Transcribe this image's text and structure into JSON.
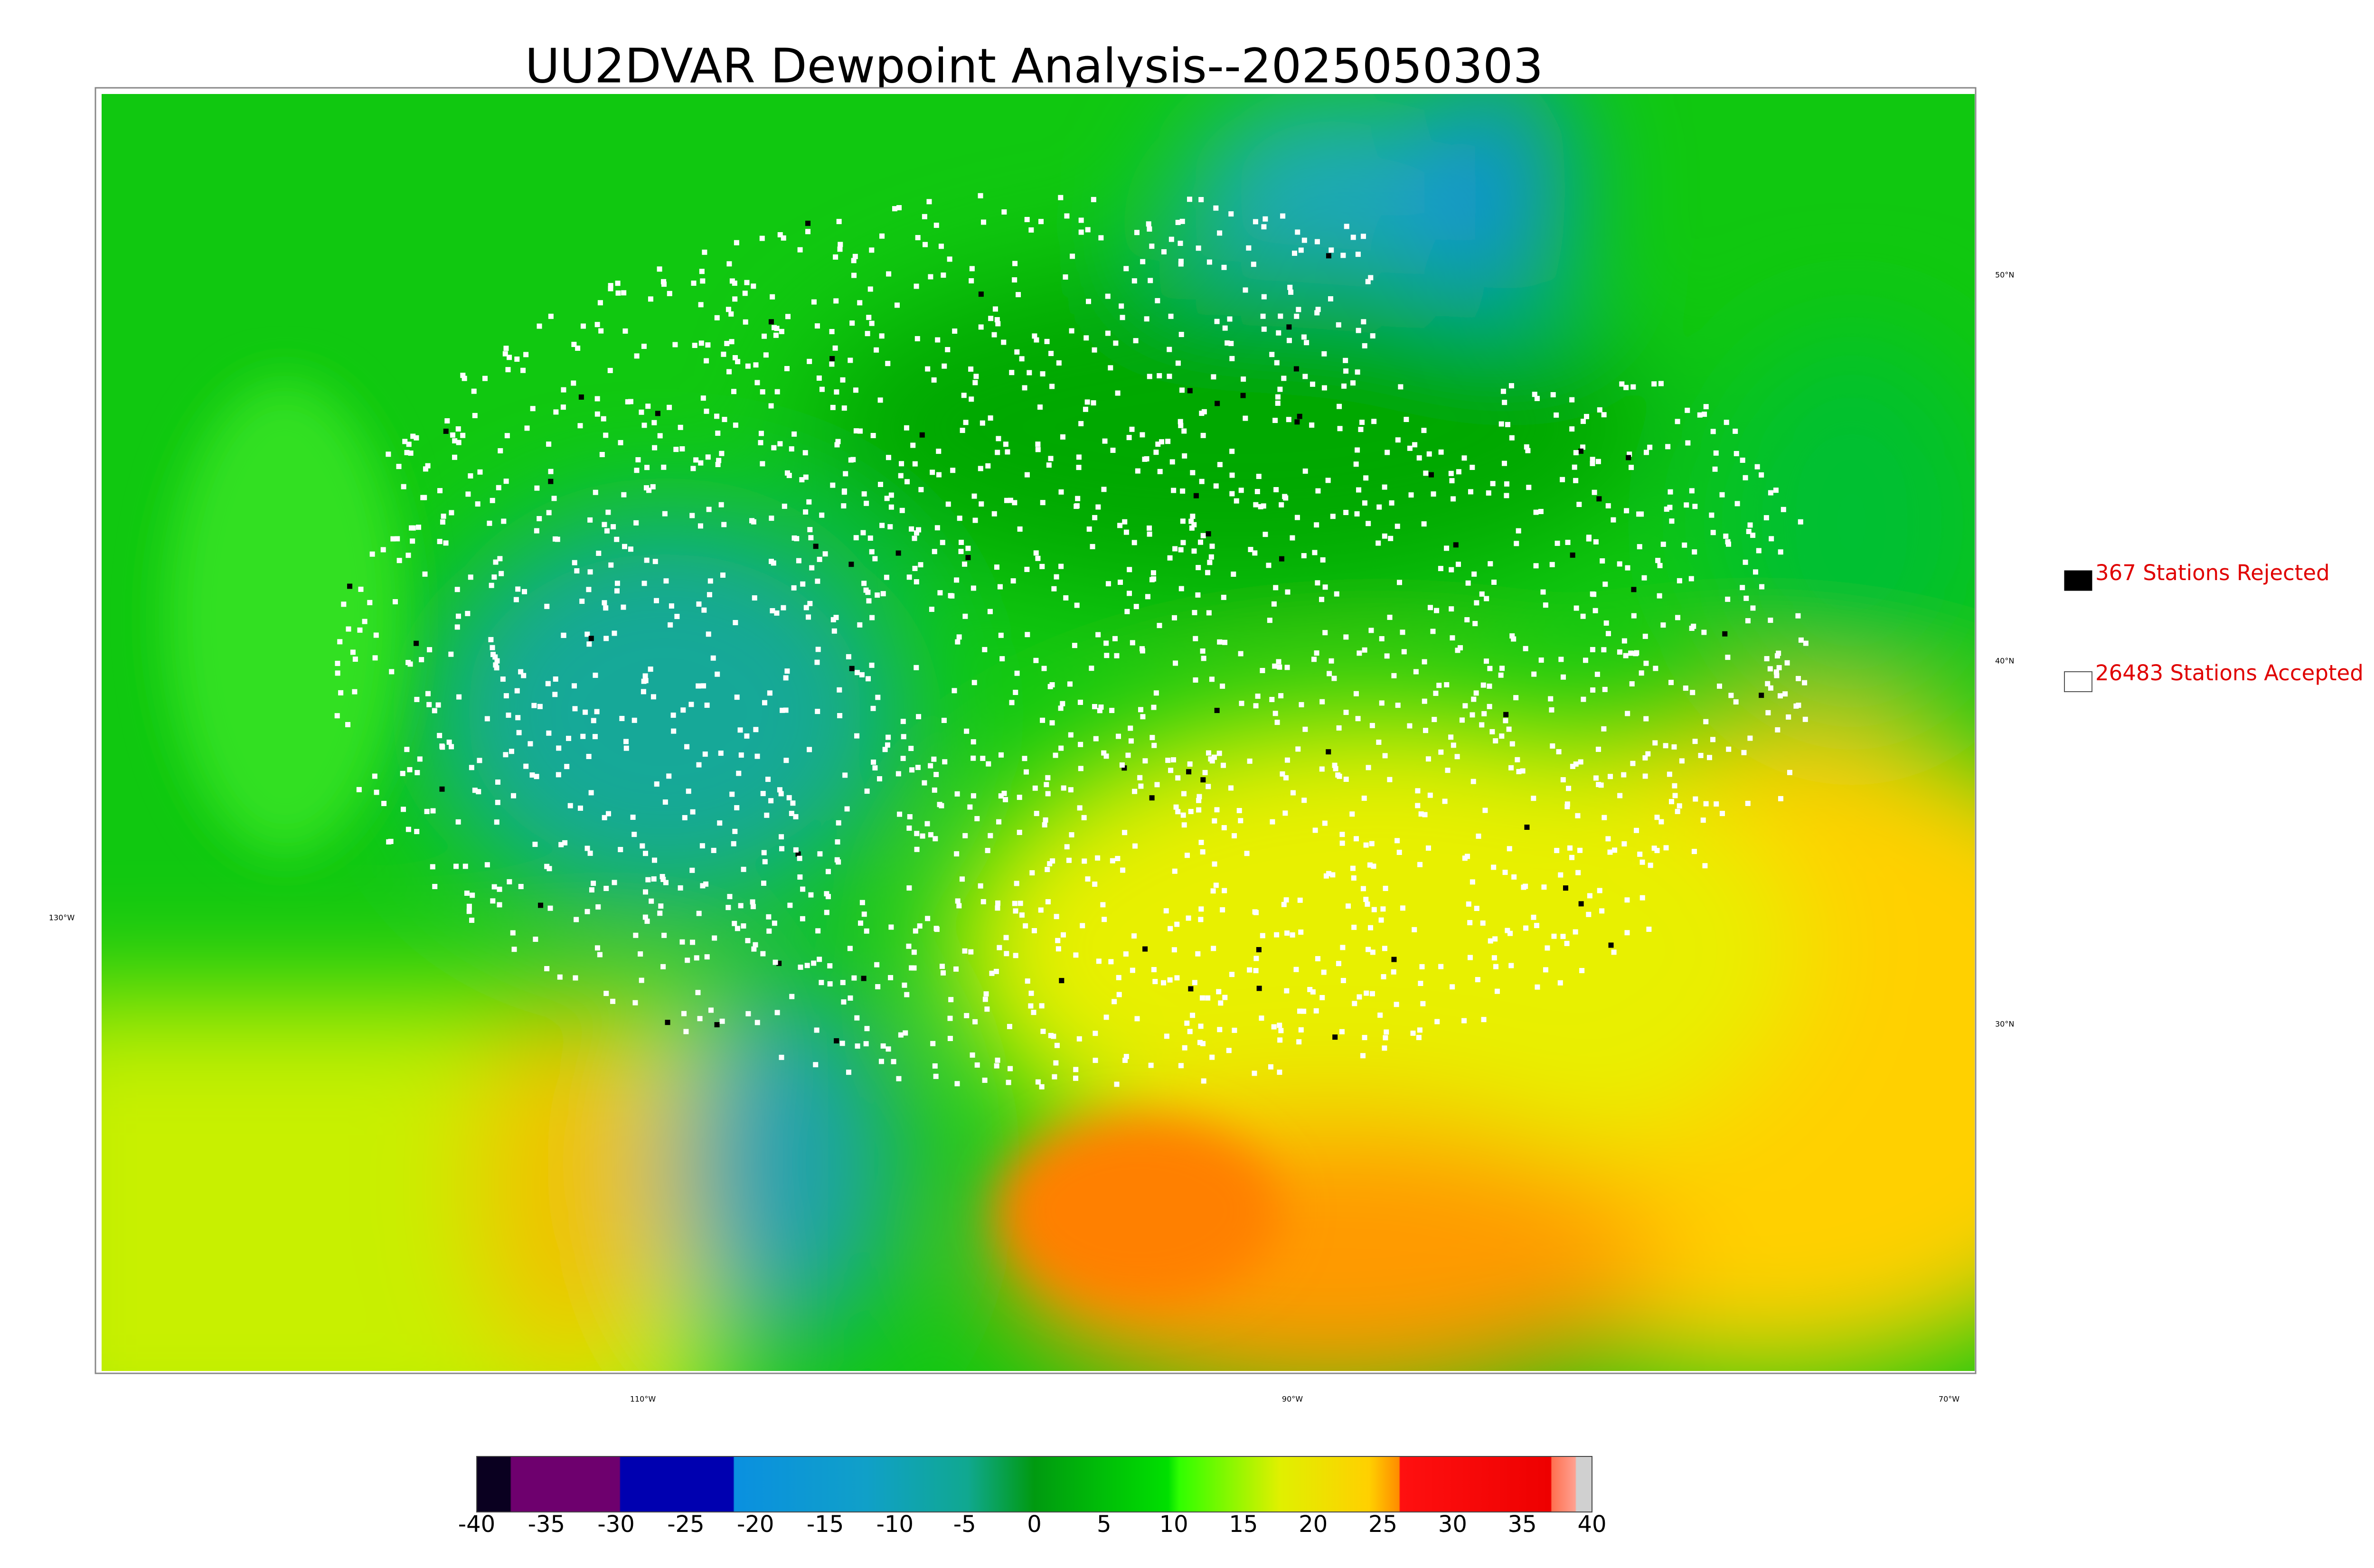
{
  "title": "UU2DVAR Dewpoint Analysis--2025050303",
  "legend": [
    {
      "label": "367 Stations Rejected"
    },
    {
      "label": "26483 Stations Accepted"
    }
  ],
  "latitude_labels": [
    "50°N",
    "40°N",
    "30°N"
  ],
  "longitude_labels": [
    "130°W",
    "110°W",
    "90°W",
    "70°W"
  ],
  "colorbar": {
    "ticks": [
      -40,
      -35,
      -30,
      -25,
      -20,
      -15,
      -10,
      -5,
      0,
      5,
      10,
      15,
      20,
      25,
      30,
      35,
      40
    ]
  }
}
